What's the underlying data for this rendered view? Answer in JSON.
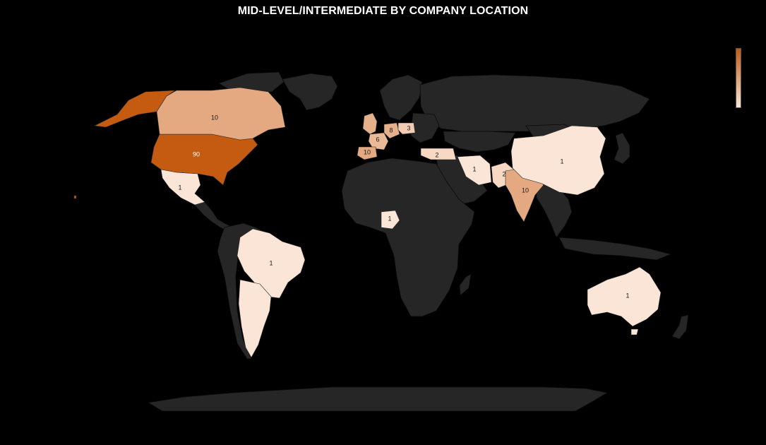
{
  "title": "MID-LEVEL/INTERMEDIATE BY COMPANY LOCATION",
  "colors": {
    "background": "#000000",
    "no_data_land": "#262626",
    "scale_high": "#c55a11",
    "scale_low": "#fbe5d6"
  },
  "legend": {
    "orientation": "vertical",
    "placement": "top-right"
  },
  "regions": [
    {
      "id": "usa",
      "value": 90
    },
    {
      "id": "canada",
      "value": 10
    },
    {
      "id": "mexico",
      "value": 1
    },
    {
      "id": "brazil",
      "value": 1
    },
    {
      "id": "uk",
      "value": 8
    },
    {
      "id": "france",
      "value": 6
    },
    {
      "id": "germany",
      "value": 8
    },
    {
      "id": "poland",
      "value": 3
    },
    {
      "id": "spain",
      "value": 10
    },
    {
      "id": "greece",
      "value": 2
    },
    {
      "id": "iran",
      "value": 1
    },
    {
      "id": "pakistan",
      "value": 2
    },
    {
      "id": "india",
      "value": 10
    },
    {
      "id": "china",
      "value": 1
    },
    {
      "id": "nigeria",
      "value": 1
    },
    {
      "id": "australia",
      "value": 1
    }
  ]
}
